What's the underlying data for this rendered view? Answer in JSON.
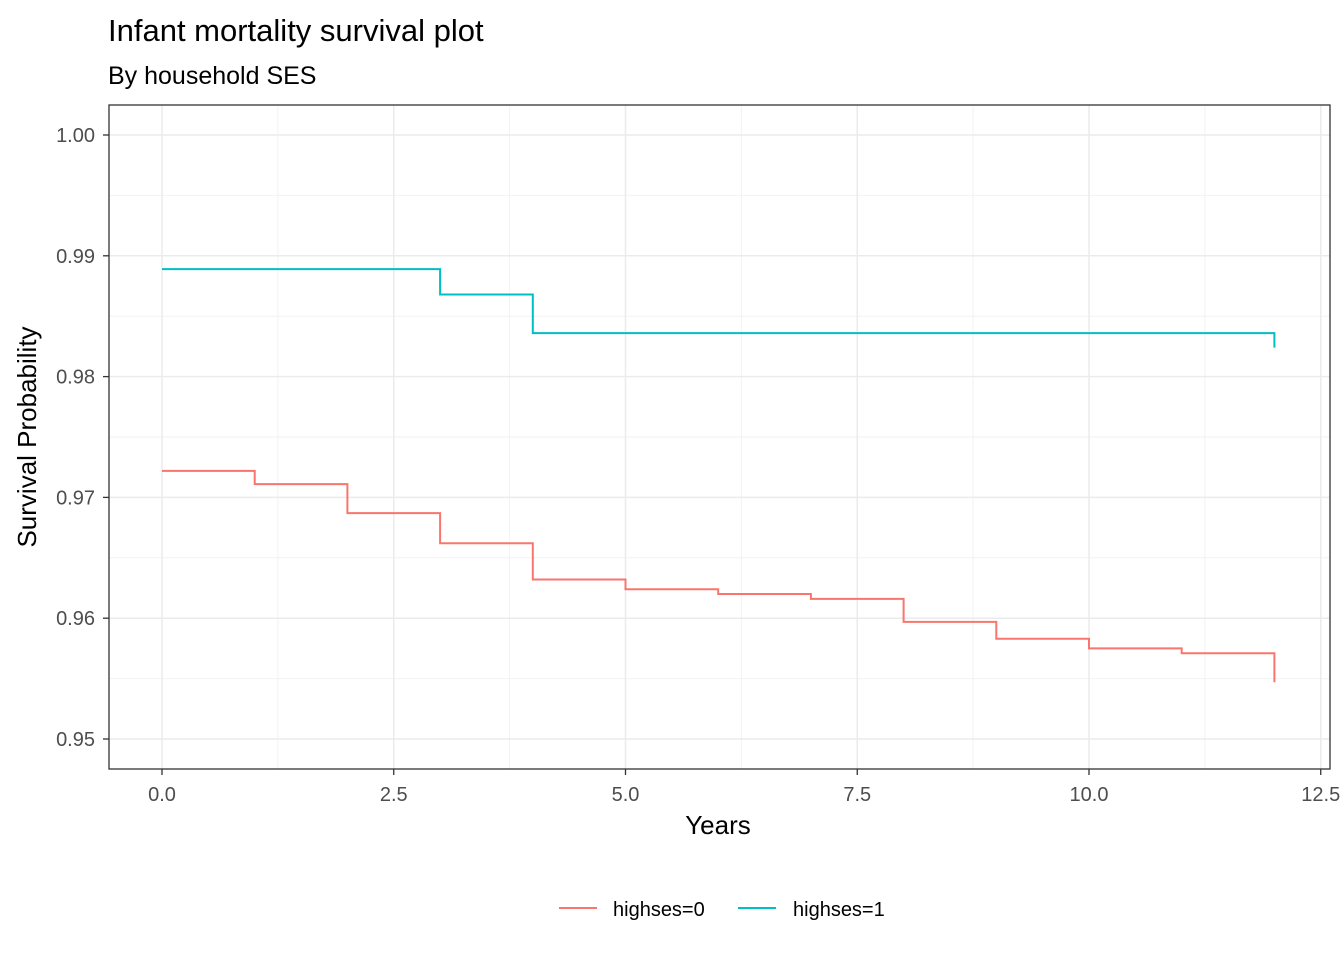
{
  "chart_data": {
    "type": "line",
    "step": true,
    "title": "Infant mortality survival plot",
    "subtitle": "By household SES",
    "xlabel": "Years",
    "ylabel": "Survival Probability",
    "xlim": [
      0,
      12.5
    ],
    "ylim": [
      0.95,
      1.0
    ],
    "x_ticks": [
      0,
      2.5,
      5,
      7.5,
      10,
      12.5
    ],
    "x_tick_labels": [
      "0.0",
      "2.5",
      "5.0",
      "7.5",
      "10.0",
      "12.5"
    ],
    "y_ticks": [
      0.95,
      0.96,
      0.97,
      0.98,
      0.99,
      1.0
    ],
    "y_tick_labels": [
      "0.95",
      "0.96",
      "0.97",
      "0.98",
      "0.99",
      "1.00"
    ],
    "grid": true,
    "legend_position": "bottom",
    "series": [
      {
        "name": "highses=0",
        "color": "#F8766D",
        "x": [
          0,
          1,
          2,
          3,
          4,
          5,
          6,
          7,
          8,
          9,
          10,
          11,
          12,
          12
        ],
        "y": [
          0.9722,
          0.9711,
          0.9687,
          0.9662,
          0.9632,
          0.9624,
          0.962,
          0.9616,
          0.9597,
          0.9583,
          0.9575,
          0.9571,
          0.957,
          0.9547
        ]
      },
      {
        "name": "highses=1",
        "color": "#00BFC4",
        "x": [
          0,
          3,
          4,
          12,
          12
        ],
        "y": [
          0.9889,
          0.9868,
          0.9836,
          0.9836,
          0.9824
        ]
      }
    ]
  }
}
